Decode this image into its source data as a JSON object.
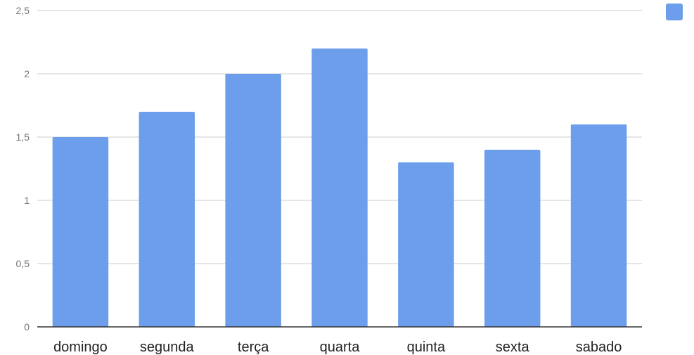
{
  "chart_data": {
    "type": "bar",
    "title": "",
    "xlabel": "",
    "ylabel": "",
    "categories": [
      "domingo",
      "segunda",
      "terça",
      "quarta",
      "quinta",
      "sexta",
      "sabado"
    ],
    "series": [
      {
        "values": [
          1.5,
          1.7,
          2.0,
          2.2,
          1.3,
          1.4,
          1.6
        ],
        "color": "#6d9eeb"
      }
    ],
    "ylim": [
      0,
      2.5
    ],
    "yticks": [
      0,
      0.5,
      1,
      1.5,
      2,
      2.5
    ],
    "ytick_labels": [
      "0",
      "0,5",
      "1",
      "1,5",
      "2",
      "2,5"
    ],
    "grid": true,
    "legend": {
      "placement": "top-right",
      "entries": [
        {
          "color": "#6d9eeb"
        }
      ]
    }
  }
}
